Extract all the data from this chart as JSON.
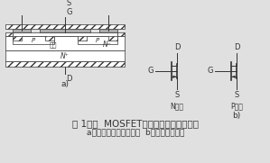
{
  "bg_color": "#e8e8e8",
  "line_color": "#333333",
  "title_line1": "图 1功率  MOSFET的结构和电气图形符号",
  "title_line2": "a）内部结构断面示意图  b）电气图形符号",
  "label_a": "a)",
  "label_b": "b)",
  "label_S_top": "S",
  "label_G_struct": "G",
  "label_D_bottom": "D",
  "label_N_minus": "N⁻",
  "label_N_plus": "N⁺",
  "label_gou_dao": "沟道",
  "label_P": "P",
  "label_N_channel": "N沟道",
  "label_P_channel": "P沟道",
  "label_D_n": "D",
  "label_G_n": "G",
  "label_S_n": "S",
  "label_D_p": "D",
  "label_G_p": "G",
  "label_S_p": "S"
}
